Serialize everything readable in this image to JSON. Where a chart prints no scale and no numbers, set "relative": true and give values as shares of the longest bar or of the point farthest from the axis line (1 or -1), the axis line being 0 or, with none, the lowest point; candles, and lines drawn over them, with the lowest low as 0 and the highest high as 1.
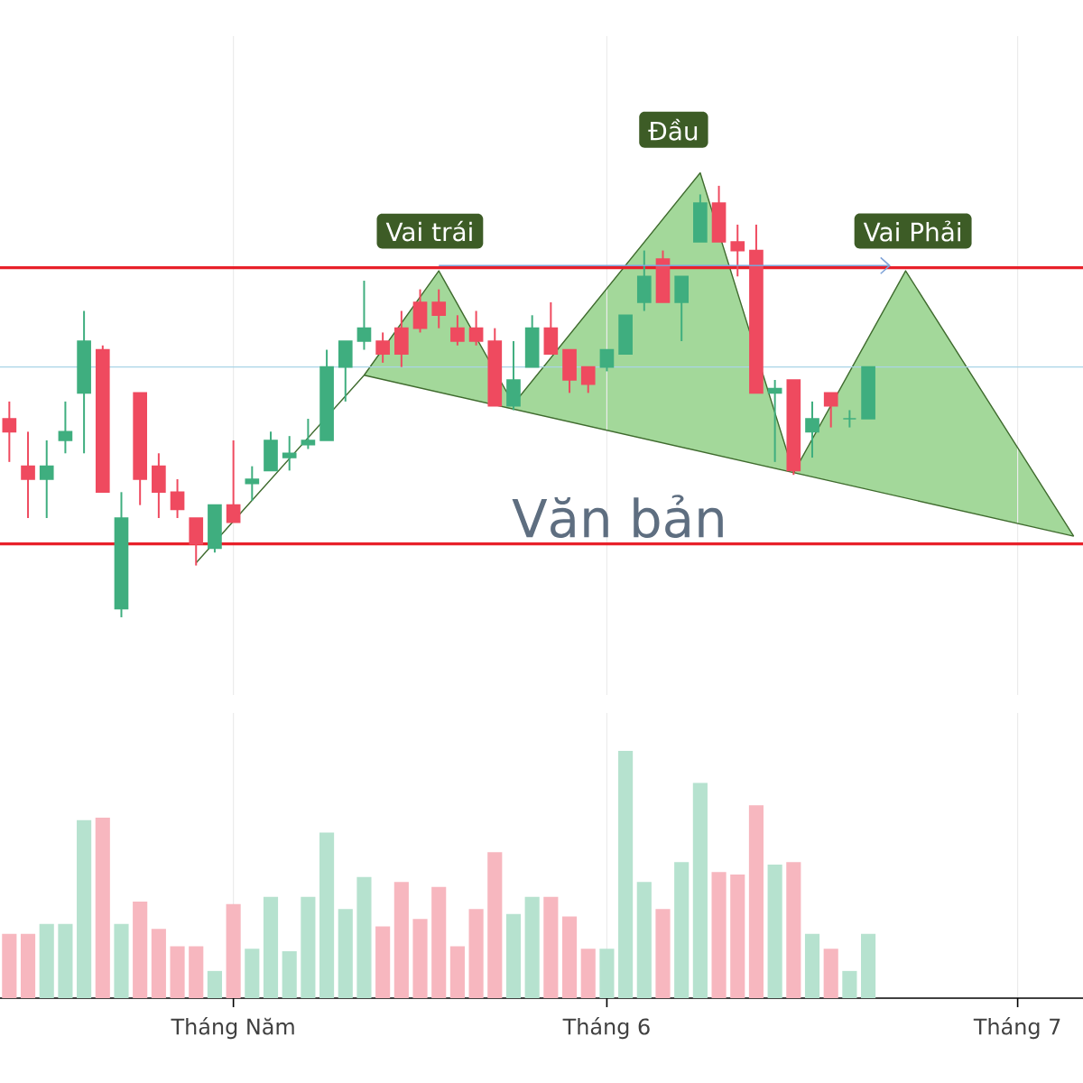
{
  "chart_data": [
    {
      "type": "candlestick",
      "relative": true,
      "categories": [
        null,
        null,
        null,
        null,
        null,
        null,
        null,
        null,
        null,
        null,
        null,
        null,
        null,
        null,
        null,
        null,
        null,
        null,
        null,
        null,
        null,
        null,
        null,
        null,
        null,
        null,
        null,
        null,
        null,
        null,
        null,
        null,
        null,
        null,
        null,
        null,
        null,
        null,
        null,
        null,
        null,
        null,
        null,
        null,
        null,
        null,
        null,
        null,
        null,
        null,
        null,
        null,
        null,
        null,
        null,
        null,
        null,
        null
      ],
      "ohlc": [
        [
          0.46,
          0.5,
          0.36,
          0.43
        ],
        [
          0.35,
          0.43,
          0.23,
          0.32
        ],
        [
          0.32,
          0.41,
          0.23,
          0.35
        ],
        [
          0.41,
          0.5,
          0.38,
          0.43
        ],
        [
          0.52,
          0.71,
          0.38,
          0.64
        ],
        [
          0.62,
          0.63,
          0.29,
          0.29
        ],
        [
          0.02,
          0.29,
          0.0,
          0.23
        ],
        [
          0.52,
          0.52,
          0.26,
          0.32
        ],
        [
          0.35,
          0.38,
          0.23,
          0.29
        ],
        [
          0.29,
          0.32,
          0.23,
          0.25
        ],
        [
          0.23,
          0.23,
          0.12,
          0.17
        ],
        [
          0.16,
          0.26,
          0.15,
          0.26
        ],
        [
          0.26,
          0.41,
          0.22,
          0.22
        ],
        [
          0.31,
          0.35,
          0.27,
          0.32
        ],
        [
          0.34,
          0.43,
          0.34,
          0.41
        ],
        [
          0.37,
          0.42,
          0.34,
          0.38
        ],
        [
          0.4,
          0.46,
          0.39,
          0.41
        ],
        [
          0.41,
          0.62,
          0.41,
          0.58
        ],
        [
          0.58,
          0.64,
          0.5,
          0.64
        ],
        [
          0.64,
          0.78,
          0.62,
          0.67
        ],
        [
          0.64,
          0.66,
          0.59,
          0.61
        ],
        [
          0.67,
          0.71,
          0.58,
          0.61
        ],
        [
          0.73,
          0.76,
          0.66,
          0.67
        ],
        [
          0.73,
          0.76,
          0.67,
          0.7
        ],
        [
          0.67,
          0.7,
          0.63,
          0.64
        ],
        [
          0.67,
          0.71,
          0.63,
          0.64
        ],
        [
          0.64,
          0.67,
          0.49,
          0.49
        ],
        [
          0.49,
          0.64,
          0.48,
          0.55
        ],
        [
          0.58,
          0.7,
          0.58,
          0.67
        ],
        [
          0.67,
          0.73,
          0.61,
          0.61
        ],
        [
          0.62,
          0.62,
          0.52,
          0.55
        ],
        [
          0.58,
          0.58,
          0.52,
          0.54
        ],
        [
          0.58,
          0.62,
          0.57,
          0.62
        ],
        [
          0.61,
          0.7,
          0.61,
          0.7
        ],
        [
          0.73,
          0.85,
          0.71,
          0.79
        ],
        [
          0.83,
          0.85,
          0.73,
          0.73
        ],
        [
          0.73,
          0.79,
          0.64,
          0.79
        ],
        [
          0.87,
          0.98,
          0.87,
          0.96
        ],
        [
          0.96,
          1.0,
          0.87,
          0.87
        ],
        [
          0.87,
          0.91,
          0.79,
          0.85
        ],
        [
          0.85,
          0.91,
          0.52,
          0.52
        ],
        [
          0.52,
          0.55,
          0.36,
          0.53
        ],
        [
          0.55,
          0.55,
          0.33,
          0.34
        ],
        [
          0.43,
          0.5,
          0.37,
          0.46
        ],
        [
          0.52,
          0.52,
          0.44,
          0.49
        ],
        [
          0.46,
          0.48,
          0.44,
          0.46
        ],
        [
          0.46,
          0.58,
          0.46,
          0.58
        ],
        null,
        null,
        null,
        null,
        null,
        null,
        null,
        null,
        null,
        null,
        null
      ],
      "colors": [
        "#ef4a5f",
        "#ef4a5f",
        "#3fae7f",
        "#3fae7f",
        "#3fae7f",
        "#ef4a5f",
        "#3fae7f",
        "#ef4a5f",
        "#ef4a5f",
        "#ef4a5f",
        "#ef4a5f",
        "#3fae7f",
        "#ef4a5f",
        "#3fae7f",
        "#3fae7f",
        "#3fae7f",
        "#3fae7f",
        "#3fae7f",
        "#3fae7f",
        "#3fae7f",
        "#ef4a5f",
        "#ef4a5f",
        "#ef4a5f",
        "#ef4a5f",
        "#ef4a5f",
        "#ef4a5f",
        "#ef4a5f",
        "#3fae7f",
        "#3fae7f",
        "#ef4a5f",
        "#ef4a5f",
        "#ef4a5f",
        "#3fae7f",
        "#3fae7f",
        "#3fae7f",
        "#ef4a5f",
        "#3fae7f",
        "#3fae7f",
        "#ef4a5f",
        "#ef4a5f",
        "#ef4a5f",
        "#3fae7f",
        "#ef4a5f",
        "#3fae7f",
        "#ef4a5f",
        "#3fae7f",
        "#3fae7f",
        null,
        null,
        null,
        null,
        null,
        null,
        null,
        null,
        null,
        null,
        null
      ],
      "series": [
        {
          "type": "line",
          "color": "#3f6b2e",
          "values": [
            null,
            null,
            null,
            null,
            null,
            null,
            null,
            null,
            null,
            null,
            0.126,
            null,
            null,
            null,
            null,
            null,
            null,
            null,
            null,
            0.561,
            null,
            null,
            null,
            0.803,
            null,
            null,
            null,
            0.494,
            null,
            null,
            null,
            null,
            null,
            null,
            null,
            null,
            null,
            1.03,
            null,
            null,
            null,
            null,
            0.335,
            null,
            null,
            null,
            null,
            null,
            0.803,
            null,
            null,
            null,
            null,
            null,
            null,
            null,
            null,
            0.188
          ],
          "name": null
        },
        {
          "type": "line",
          "color": "#3f6b2e",
          "values": [
            null,
            null,
            null,
            null,
            null,
            null,
            null,
            null,
            null,
            null,
            null,
            null,
            null,
            null,
            null,
            null,
            null,
            null,
            null,
            0.561,
            null,
            null,
            null,
            null,
            null,
            null,
            null,
            null,
            null,
            null,
            null,
            null,
            null,
            null,
            null,
            null,
            null,
            null,
            null,
            null,
            null,
            null,
            null,
            null,
            null,
            null,
            null,
            null,
            null,
            null,
            null,
            null,
            null,
            null,
            null,
            null,
            null,
            0.188
          ]
        }
      ],
      "tick_labels": false,
      "grid": "x",
      "ref_lines": [
        {
          "axis": "y",
          "value": 0.81,
          "color": "#e8202a"
        },
        {
          "axis": "y",
          "value": 0.17,
          "color": "#e8202a"
        },
        {
          "axis": "y",
          "value": 0.58,
          "color": "#a9d4e6"
        }
      ],
      "annotations": [
        "Vai trái",
        "Đầu",
        "Vai Phải",
        "Văn bản"
      ]
    },
    {
      "type": "bar",
      "relative": true,
      "categories": [
        null,
        null,
        null,
        null,
        null,
        null,
        null,
        null,
        null,
        null,
        null,
        null,
        "Tháng Năm",
        null,
        null,
        null,
        null,
        null,
        null,
        null,
        null,
        null,
        null,
        null,
        null,
        null,
        null,
        null,
        null,
        null,
        null,
        null,
        "Tháng 6",
        null,
        null,
        null,
        null,
        null,
        null,
        null,
        null,
        null,
        null,
        null,
        null,
        null,
        null,
        null,
        null,
        null,
        null,
        null,
        null,
        null,
        "Tháng 7",
        null,
        null,
        null
      ],
      "values": [
        0.26,
        0.26,
        0.3,
        0.3,
        0.72,
        0.73,
        0.3,
        0.39,
        0.28,
        0.21,
        0.21,
        0.11,
        0.38,
        0.2,
        0.41,
        0.19,
        0.41,
        0.67,
        0.36,
        0.49,
        0.29,
        0.47,
        0.32,
        0.45,
        0.21,
        0.36,
        0.59,
        0.34,
        0.41,
        0.41,
        0.33,
        0.2,
        0.2,
        1.0,
        0.47,
        0.36,
        0.55,
        0.87,
        0.51,
        0.5,
        0.78,
        0.54,
        0.55,
        0.26,
        0.2,
        0.11,
        0.26,
        null,
        null,
        null,
        null,
        null,
        null,
        null,
        null,
        null,
        null,
        null
      ],
      "colors": [
        "#f7b7bf",
        "#f7b7bf",
        "#b6e2cf",
        "#b6e2cf",
        "#b6e2cf",
        "#f7b7bf",
        "#b6e2cf",
        "#f7b7bf",
        "#f7b7bf",
        "#f7b7bf",
        "#f7b7bf",
        "#b6e2cf",
        "#f7b7bf",
        "#b6e2cf",
        "#b6e2cf",
        "#b6e2cf",
        "#b6e2cf",
        "#b6e2cf",
        "#b6e2cf",
        "#b6e2cf",
        "#f7b7bf",
        "#f7b7bf",
        "#f7b7bf",
        "#f7b7bf",
        "#f7b7bf",
        "#f7b7bf",
        "#f7b7bf",
        "#b6e2cf",
        "#b6e2cf",
        "#f7b7bf",
        "#f7b7bf",
        "#f7b7bf",
        "#b6e2cf",
        "#b6e2cf",
        "#b6e2cf",
        "#f7b7bf",
        "#b6e2cf",
        "#b6e2cf",
        "#f7b7bf",
        "#f7b7bf",
        "#f7b7bf",
        "#b6e2cf",
        "#f7b7bf",
        "#b6e2cf",
        "#f7b7bf",
        "#b6e2cf",
        "#b6e2cf",
        null,
        null,
        null,
        null,
        null,
        null,
        null,
        null,
        null,
        null,
        null
      ],
      "tick_labels": "x",
      "grid": "x"
    }
  ]
}
